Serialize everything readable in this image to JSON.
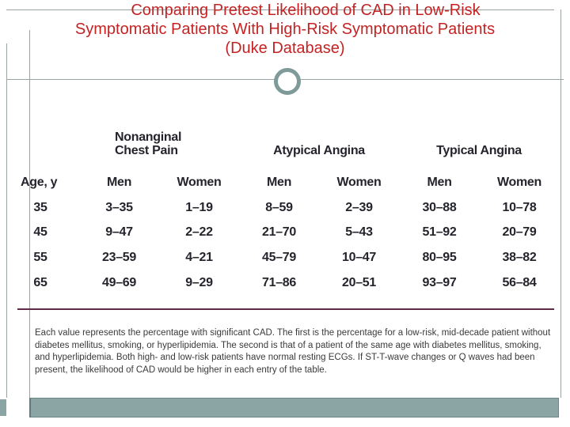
{
  "title": {
    "lines": [
      "Comparing Pretest Likelihood of CAD in Low-Risk",
      "Symptomatic Patients With High-Risk Symptomatic Patients",
      "(Duke Database)"
    ]
  },
  "table": {
    "group_headers": [
      "Nonanginal Chest Pain",
      "Atypical Angina",
      "Typical Angina"
    ],
    "col_headers": [
      "Age, y",
      "Men",
      "Women",
      "Men",
      "Women",
      "Men",
      "Women"
    ],
    "rows": [
      [
        "35",
        "3–35",
        "1–19",
        "8–59",
        "2–39",
        "30–88",
        "10–78"
      ],
      [
        "45",
        "9–47",
        "2–22",
        "21–70",
        "5–43",
        "51–92",
        "20–79"
      ],
      [
        "55",
        "23–59",
        "4–21",
        "45–79",
        "10–47",
        "80–95",
        "38–82"
      ],
      [
        "65",
        "49–69",
        "9–29",
        "71–86",
        "20–51",
        "93–97",
        "56–84"
      ]
    ]
  },
  "footnote": "Each value represents the percentage with significant CAD. The first is the percentage for a low-risk, mid-decade patient without diabetes mellitus, smoking, or hyperlipidemia. The second is that of a patient of the same age with diabetes mellitus, smoking, and hyperlipidemia. Both high- and low-risk patients have normal resting ECGs. If ST-T-wave changes or Q waves had been present, the likelihood of CAD would be higher in each entry of the table.",
  "colors": {
    "title_red": "#c42323",
    "rule_gray": "#9aa2a2",
    "accent_teal": "#7e9a99",
    "bar_teal": "#8aa5a3",
    "divider_maroon": "#5e2a45",
    "table_text": "#24242c",
    "footnote_text": "#3a3a3a"
  }
}
